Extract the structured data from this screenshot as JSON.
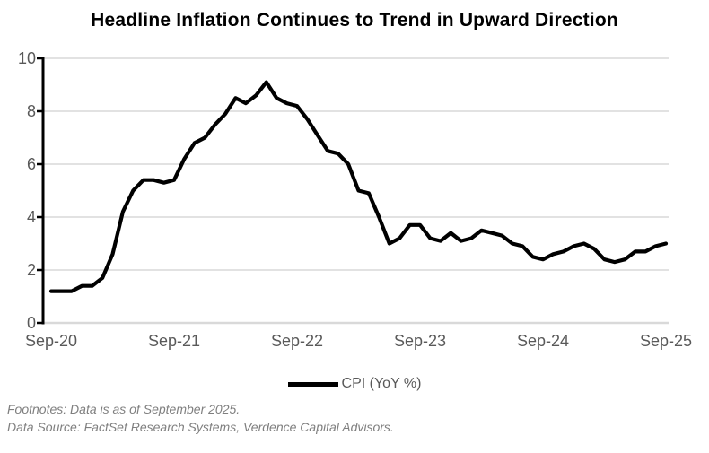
{
  "title": "Headline Inflation Continues to Trend in Upward Direction",
  "legend": {
    "label": "CPI (YoY %)"
  },
  "footnotes": {
    "line1": "Footnotes: Data is as of September 2025.",
    "line2": "Data Source: FactSet Research Systems, Verdence Capital Advisors."
  },
  "colors": {
    "line": "#000000",
    "grid": "#d9d9d9",
    "axis": "#000000",
    "tick_label": "#595959",
    "legend_text": "#595959",
    "footnote_text": "#7f7f7f"
  },
  "chart_data": {
    "type": "line",
    "title": "Headline Inflation Continues to Trend in Upward Direction",
    "xlabel": "",
    "ylabel": "",
    "ylim": [
      0,
      10
    ],
    "yticks": [
      0,
      2,
      4,
      6,
      8,
      10
    ],
    "grid": "horizontal",
    "legend_position": "bottom",
    "x_tick_labels": [
      "Sep-20",
      "Sep-21",
      "Sep-22",
      "Sep-23",
      "Sep-24",
      "Sep-25"
    ],
    "x_tick_every_months": 12,
    "x": [
      "Sep-20",
      "Oct-20",
      "Nov-20",
      "Dec-20",
      "Jan-21",
      "Feb-21",
      "Mar-21",
      "Apr-21",
      "May-21",
      "Jun-21",
      "Jul-21",
      "Aug-21",
      "Sep-21",
      "Oct-21",
      "Nov-21",
      "Dec-21",
      "Jan-22",
      "Feb-22",
      "Mar-22",
      "Apr-22",
      "May-22",
      "Jun-22",
      "Jul-22",
      "Aug-22",
      "Sep-22",
      "Oct-22",
      "Nov-22",
      "Dec-22",
      "Jan-23",
      "Feb-23",
      "Mar-23",
      "Apr-23",
      "May-23",
      "Jun-23",
      "Jul-23",
      "Aug-23",
      "Sep-23",
      "Oct-23",
      "Nov-23",
      "Dec-23",
      "Jan-24",
      "Feb-24",
      "Mar-24",
      "Apr-24",
      "May-24",
      "Jun-24",
      "Jul-24",
      "Aug-24",
      "Sep-24",
      "Oct-24",
      "Nov-24",
      "Dec-24",
      "Jan-25",
      "Feb-25",
      "Mar-25",
      "Apr-25",
      "May-25",
      "Jun-25",
      "Jul-25",
      "Aug-25",
      "Sep-25"
    ],
    "series": [
      {
        "name": "CPI (YoY %)",
        "values": [
          1.2,
          1.2,
          1.2,
          1.4,
          1.4,
          1.7,
          2.6,
          4.2,
          5.0,
          5.4,
          5.4,
          5.3,
          5.4,
          6.2,
          6.8,
          7.0,
          7.5,
          7.9,
          8.5,
          8.3,
          8.6,
          9.1,
          8.5,
          8.3,
          8.2,
          7.7,
          7.1,
          6.5,
          6.4,
          6.0,
          5.0,
          4.9,
          4.0,
          3.0,
          3.2,
          3.7,
          3.7,
          3.2,
          3.1,
          3.4,
          3.1,
          3.2,
          3.5,
          3.4,
          3.3,
          3.0,
          2.9,
          2.5,
          2.4,
          2.6,
          2.7,
          2.9,
          3.0,
          2.8,
          2.4,
          2.3,
          2.4,
          2.7,
          2.7,
          2.9,
          3.0
        ]
      }
    ]
  }
}
